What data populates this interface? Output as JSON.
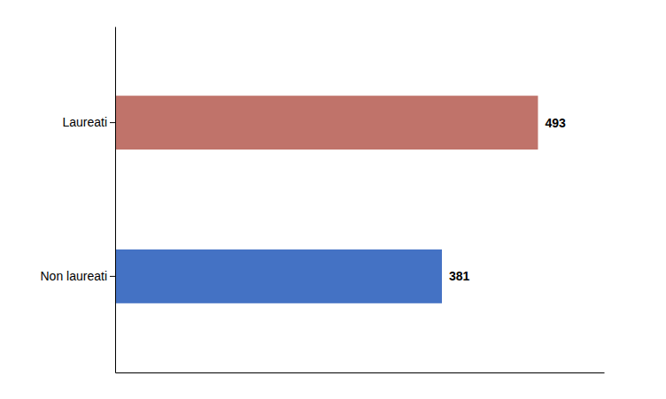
{
  "chart_data": {
    "type": "bar",
    "orientation": "horizontal",
    "categories": [
      "Non laureati",
      "Laureati"
    ],
    "values": [
      381,
      493
    ],
    "colors": [
      "#4472C4",
      "#C0736A"
    ],
    "xlim": [
      0,
      570
    ],
    "data_labels": true,
    "grid": false,
    "tick_labels": "y"
  }
}
